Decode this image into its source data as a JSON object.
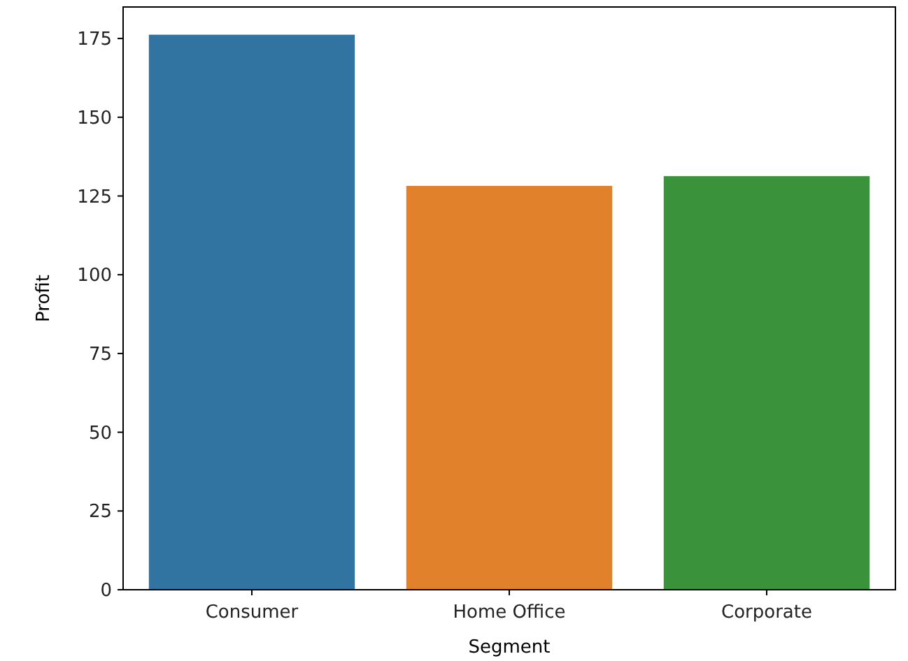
{
  "chart_data": {
    "type": "bar",
    "xlabel": "Segment",
    "ylabel": "Profit",
    "categories": [
      "Consumer",
      "Home Office",
      "Corporate"
    ],
    "values": [
      176.2,
      128.2,
      131.3
    ],
    "colors": [
      "#3274a1",
      "#e1812c",
      "#3a923a"
    ],
    "ylim": [
      0,
      185
    ],
    "yticks": [
      0,
      25,
      50,
      75,
      100,
      125,
      150,
      175
    ],
    "grid": false
  }
}
